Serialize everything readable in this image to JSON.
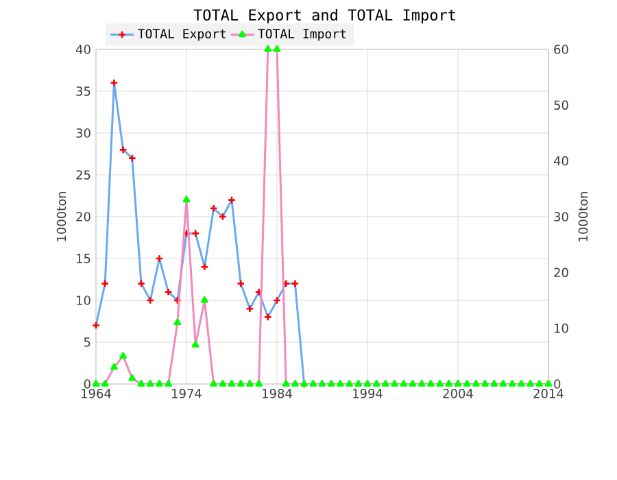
{
  "chart_data": {
    "type": "line",
    "title": "TOTAL Export and TOTAL Import",
    "ylabel": "1000ton",
    "y2label": "1000ton",
    "x": [
      1964,
      1965,
      1966,
      1967,
      1968,
      1969,
      1970,
      1971,
      1972,
      1973,
      1974,
      1975,
      1976,
      1977,
      1978,
      1979,
      1980,
      1981,
      1982,
      1983,
      1984,
      1985,
      1986,
      1987,
      1988,
      1989,
      1990,
      1991,
      1992,
      1993,
      1994,
      1995,
      1996,
      1997,
      1998,
      1999,
      2000,
      2001,
      2002,
      2003,
      2004,
      2005,
      2006,
      2007,
      2008,
      2009,
      2010,
      2011,
      2012,
      2013,
      2014
    ],
    "series": [
      {
        "name": "TOTAL Export",
        "color": "#6aaaf0",
        "marker": "cross",
        "values": [
          7,
          12,
          36,
          28,
          27,
          12,
          10,
          15,
          11,
          10,
          18,
          18,
          14,
          21,
          20,
          22,
          12,
          9,
          11,
          8,
          10,
          12,
          12,
          0,
          null,
          null,
          null,
          null,
          null,
          null,
          null,
          null,
          null,
          null,
          null,
          null,
          null,
          null,
          null,
          null,
          null,
          null,
          null,
          null,
          null,
          null,
          null,
          null,
          null,
          null,
          null
        ]
      },
      {
        "name": "TOTAL Import",
        "color": "#f08ac0",
        "marker": "triangle",
        "axis": "y2",
        "values": [
          0,
          0,
          3,
          5,
          1,
          0,
          0,
          0,
          0,
          11,
          33,
          7,
          15,
          0,
          0,
          0,
          0,
          0,
          0,
          60,
          60,
          0,
          0,
          0,
          0,
          0,
          0,
          0,
          0,
          0,
          0,
          0,
          0,
          0,
          0,
          0,
          0,
          0,
          0,
          0,
          0,
          0,
          0,
          0,
          0,
          0,
          0,
          0,
          0,
          0,
          0
        ]
      }
    ],
    "xlim": [
      1964,
      2014
    ],
    "xticks": [
      1964,
      1974,
      1984,
      1994,
      2004,
      2014
    ],
    "ylim": [
      0,
      40
    ],
    "yticks": [
      0,
      5,
      10,
      15,
      20,
      25,
      30,
      35,
      40
    ],
    "y2lim": [
      0,
      60
    ],
    "y2ticks": [
      0,
      10,
      20,
      30,
      40,
      50,
      60
    ],
    "grid": true,
    "legend": "top"
  }
}
